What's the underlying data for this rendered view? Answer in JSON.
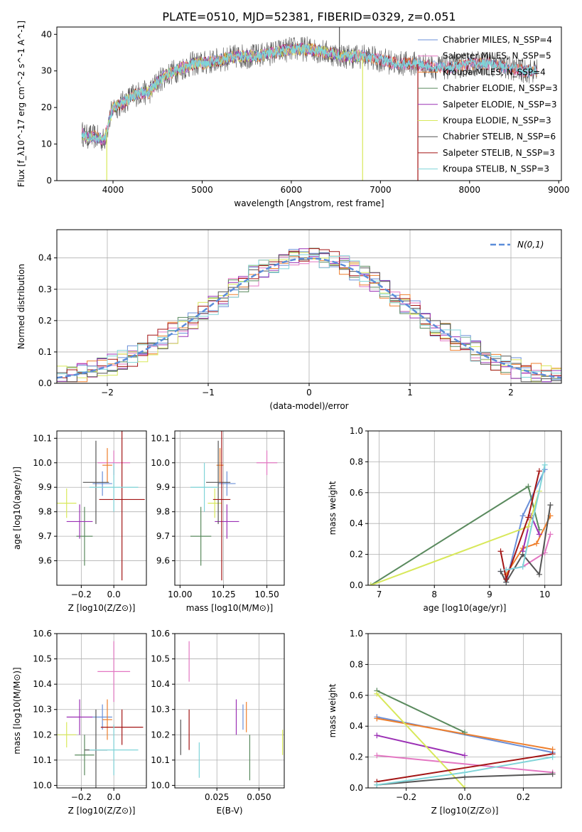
{
  "figure": {
    "title": "PLATE=0510, MJD=52381, FIBERID=0329, z=0.051"
  },
  "model_names": [
    "Chabrier MILES",
    "Salpeter MILES",
    "Kroupa MILES",
    "Chabrier ELODIE",
    "Salpeter ELODIE",
    "Kroupa ELODIE",
    "Chabrier STELIB",
    "Salpeter STELIB",
    "Kroupa STELIB"
  ],
  "model_colors": [
    "#6a8fd8",
    "#e377c2",
    "#ee7f2d",
    "#5a8a5e",
    "#9b30b5",
    "#d8e85a",
    "#555555",
    "#a31515",
    "#7fd4d8"
  ],
  "chart_data": [
    {
      "type": "line",
      "name": "spectrum",
      "title": "PLATE=0510, MJD=52381, FIBERID=0329, z=0.051",
      "xlabel": "wavelength [Angstrom, rest frame]",
      "ylabel": "Flux [f_λ10^-17 erg cm^-2 s^-1 A^-1]",
      "xlim": [
        3370,
        9030
      ],
      "ylim": [
        0,
        42
      ],
      "xticks": [
        4000,
        5000,
        6000,
        7000,
        8000,
        9000
      ],
      "yticks": [
        0,
        10,
        20,
        30,
        40
      ],
      "grid": false,
      "legend_position": "top-right",
      "legend": [
        "Chabrier MILES, N_SSP=4",
        "Salpeter MILES, N_SSP=5",
        "Kroupa MILES, N_SSP=4",
        "Chabrier ELODIE, N_SSP=3",
        "Salpeter ELODIE, N_SSP=3",
        "Kroupa ELODIE, N_SSP=3",
        "Chabrier STELIB, N_SSP=6",
        "Salpeter STELIB, N_SSP=3",
        "Kroupa STELIB, N_SSP=3"
      ],
      "continuum": {
        "x": [
          3650,
          3700,
          3800,
          3900,
          4000,
          4100,
          4200,
          4300,
          4400,
          4500,
          4600,
          4700,
          4800,
          4900,
          5000,
          5200,
          5400,
          5600,
          5800,
          6000,
          6200,
          6400,
          6600,
          6800,
          7000,
          7200,
          7400,
          7600,
          7800,
          8000,
          8200,
          8400,
          8600,
          8760
        ],
        "y": [
          13,
          12,
          12,
          11,
          20,
          21,
          23,
          24,
          24,
          27,
          29,
          30,
          31,
          32,
          32,
          33,
          34,
          34,
          35,
          36,
          36,
          35,
          34,
          34,
          33,
          32,
          32,
          31,
          31,
          32,
          32,
          31,
          30,
          30
        ]
      },
      "features": [
        {
          "x": 3930,
          "y": 0,
          "series": "Kroupa ELODIE"
        },
        {
          "x": 6800,
          "y": 0,
          "series": "Kroupa ELODIE"
        },
        {
          "x": 7420,
          "y": 0,
          "series": "Salpeter STELIB"
        },
        {
          "x": 6540,
          "y": 42,
          "series": "Chabrier STELIB"
        }
      ],
      "spectrum_ranges": {
        "MILES": [
          3650,
          8760
        ],
        "ELODIE": [
          3650,
          6800
        ],
        "STELIB": [
          3650,
          8760
        ]
      }
    },
    {
      "type": "line",
      "name": "residual-distribution",
      "xlabel": "(data-model)/error",
      "ylabel": "Normed distribution",
      "xlim": [
        -2.5,
        2.5
      ],
      "ylim": [
        0,
        0.49
      ],
      "xticks": [
        -2,
        -1,
        0,
        1,
        2
      ],
      "yticks": [
        0.0,
        0.1,
        0.2,
        0.3,
        0.4
      ],
      "grid": true,
      "legend_position": "top-right",
      "legend": [
        "N(0,1)"
      ],
      "gaussian": {
        "mean": 0,
        "sigma": 1
      },
      "bin_width": 0.1
    },
    {
      "type": "scatter",
      "name": "age-vs-Z",
      "xlabel": "Z [log10(Z/Z⊙)]",
      "ylabel": "age  [log10(age/yr)]",
      "xlim": [
        -0.35,
        0.2
      ],
      "ylim": [
        9.5,
        10.13
      ],
      "xticks": [
        -0.2,
        0.0
      ],
      "yticks": [
        9.6,
        9.7,
        9.8,
        9.9,
        10.0,
        10.1
      ],
      "grid": true,
      "points": [
        {
          "series": "Chabrier MILES",
          "x": -0.07,
          "xerr": 0.06,
          "y": 9.915,
          "yerr": 0.05
        },
        {
          "series": "Salpeter MILES",
          "x": 0.0,
          "xerr": 0.1,
          "y": 10.0,
          "yerr": 0.05
        },
        {
          "series": "Kroupa MILES",
          "x": -0.04,
          "xerr": 0.03,
          "y": 9.99,
          "yerr": 0.07
        },
        {
          "series": "Chabrier ELODIE",
          "x": -0.18,
          "xerr": 0.05,
          "y": 9.7,
          "yerr": 0.12
        },
        {
          "series": "Salpeter ELODIE",
          "x": -0.21,
          "xerr": 0.08,
          "y": 9.76,
          "yerr": 0.07
        },
        {
          "series": "Kroupa ELODIE",
          "x": -0.29,
          "xerr": 0.06,
          "y": 9.835,
          "yerr": 0.06
        },
        {
          "series": "Chabrier STELIB",
          "x": -0.11,
          "xerr": 0.08,
          "y": 9.92,
          "yerr": 0.17
        },
        {
          "series": "Salpeter STELIB",
          "x": 0.05,
          "xerr": 0.14,
          "y": 9.85,
          "yerr": 0.33
        },
        {
          "series": "Kroupa STELIB",
          "x": 0.0,
          "xerr": 0.15,
          "y": 9.9,
          "yerr": 0.1
        }
      ]
    },
    {
      "type": "scatter",
      "name": "age-vs-mass",
      "xlabel": "mass [log10(M/M⊙)]",
      "ylabel": "",
      "xlim": [
        9.97,
        10.6
      ],
      "ylim": [
        9.5,
        10.13
      ],
      "xticks": [
        10.0,
        10.25,
        10.5
      ],
      "yticks": [
        9.6,
        9.7,
        9.8,
        9.9,
        10.0,
        10.1
      ],
      "grid": true,
      "points": [
        {
          "series": "Chabrier MILES",
          "x": 10.27,
          "xerr": 0.05,
          "y": 9.915,
          "yerr": 0.05
        },
        {
          "series": "Salpeter MILES",
          "x": 10.5,
          "xerr": 0.06,
          "y": 10.0,
          "yerr": 0.05
        },
        {
          "series": "Kroupa MILES",
          "x": 10.23,
          "xerr": 0.02,
          "y": 9.99,
          "yerr": 0.07
        },
        {
          "series": "Chabrier ELODIE",
          "x": 10.12,
          "xerr": 0.06,
          "y": 9.7,
          "yerr": 0.12
        },
        {
          "series": "Salpeter ELODIE",
          "x": 10.27,
          "xerr": 0.07,
          "y": 9.76,
          "yerr": 0.07
        },
        {
          "series": "Kroupa ELODIE",
          "x": 10.2,
          "xerr": 0.04,
          "y": 9.835,
          "yerr": 0.06
        },
        {
          "series": "Chabrier STELIB",
          "x": 10.22,
          "xerr": 0.07,
          "y": 9.92,
          "yerr": 0.17
        },
        {
          "series": "Salpeter STELIB",
          "x": 10.24,
          "xerr": 0.05,
          "y": 9.85,
          "yerr": 0.33
        },
        {
          "series": "Kroupa STELIB",
          "x": 10.14,
          "xerr": 0.08,
          "y": 9.9,
          "yerr": 0.1
        }
      ]
    },
    {
      "type": "line",
      "name": "mass-weight-vs-age",
      "xlabel": "age  [log10(age/yr)]",
      "ylabel": "mass weight",
      "xlim": [
        6.8,
        10.3
      ],
      "ylim": [
        0,
        1
      ],
      "xticks": [
        7,
        8,
        9,
        10
      ],
      "yticks": [
        0.0,
        0.2,
        0.4,
        0.6,
        0.8,
        1.0
      ],
      "grid": true,
      "series": [
        {
          "name": "Chabrier MILES",
          "x": [
            9.2,
            9.3,
            9.6,
            10.0
          ],
          "y": [
            0.09,
            0.02,
            0.45,
            0.75
          ]
        },
        {
          "name": "Salpeter MILES",
          "x": [
            9.3,
            9.6,
            10.0,
            10.1
          ],
          "y": [
            0.1,
            0.12,
            0.21,
            0.33
          ]
        },
        {
          "name": "Kroupa MILES",
          "x": [
            9.3,
            9.6,
            9.85,
            10.1
          ],
          "y": [
            0.07,
            0.24,
            0.27,
            0.45
          ]
        },
        {
          "name": "Chabrier ELODIE",
          "x": [
            6.85,
            9.7,
            9.9
          ],
          "y": [
            0.0,
            0.64,
            0.36
          ]
        },
        {
          "name": "Salpeter ELODIE",
          "x": [
            9.6,
            9.75,
            9.9
          ],
          "y": [
            0.22,
            0.45,
            0.33
          ]
        },
        {
          "name": "Kroupa ELODIE",
          "x": [
            6.85,
            9.7,
            9.9
          ],
          "y": [
            0.0,
            0.38,
            0.61
          ]
        },
        {
          "name": "Chabrier STELIB",
          "x": [
            9.2,
            9.3,
            9.6,
            9.9,
            10.1
          ],
          "y": [
            0.09,
            0.02,
            0.2,
            0.07,
            0.52
          ]
        },
        {
          "name": "Salpeter STELIB",
          "x": [
            9.2,
            9.3,
            9.7,
            9.9
          ],
          "y": [
            0.22,
            0.04,
            0.44,
            0.74
          ]
        },
        {
          "name": "Kroupa STELIB",
          "x": [
            9.3,
            9.6,
            10.0
          ],
          "y": [
            0.1,
            0.12,
            0.78
          ]
        }
      ]
    },
    {
      "type": "scatter",
      "name": "mass-vs-Z",
      "xlabel": "Z [log10(Z/Z⊙)]",
      "ylabel": "mass [log10(M/M⊙)]",
      "xlim": [
        -0.35,
        0.2
      ],
      "ylim": [
        9.99,
        10.6
      ],
      "xticks": [
        -0.2,
        0.0
      ],
      "yticks": [
        10.0,
        10.1,
        10.2,
        10.3,
        10.4,
        10.5,
        10.6
      ],
      "grid": true,
      "points": [
        {
          "series": "Chabrier MILES",
          "x": -0.07,
          "xerr": 0.06,
          "y": 10.27,
          "yerr": 0.05
        },
        {
          "series": "Salpeter MILES",
          "x": 0.0,
          "xerr": 0.1,
          "y": 10.45,
          "yerr": 0.12
        },
        {
          "series": "Kroupa MILES",
          "x": -0.04,
          "xerr": 0.03,
          "y": 10.26,
          "yerr": 0.08
        },
        {
          "series": "Chabrier ELODIE",
          "x": -0.18,
          "xerr": 0.06,
          "y": 10.12,
          "yerr": 0.08
        },
        {
          "series": "Salpeter ELODIE",
          "x": -0.21,
          "xerr": 0.08,
          "y": 10.27,
          "yerr": 0.07
        },
        {
          "series": "Kroupa ELODIE",
          "x": -0.29,
          "xerr": 0.06,
          "y": 10.2,
          "yerr": 0.05
        },
        {
          "series": "Chabrier STELIB",
          "x": -0.11,
          "xerr": 0.07,
          "y": 10.14,
          "yerr": 0.16
        },
        {
          "series": "Salpeter STELIB",
          "x": 0.05,
          "xerr": 0.13,
          "y": 10.23,
          "yerr": 0.07
        },
        {
          "series": "Kroupa STELIB",
          "x": 0.0,
          "xerr": 0.15,
          "y": 10.14,
          "yerr": 0.1
        }
      ]
    },
    {
      "type": "scatter",
      "name": "mass-vs-ebv",
      "xlabel": "E(B-V)",
      "ylabel": "",
      "xlim": [
        0.0,
        0.065
      ],
      "ylim": [
        9.99,
        10.6
      ],
      "xticks": [
        0.025,
        0.05
      ],
      "yticks": [
        10.0,
        10.1,
        10.2,
        10.3,
        10.4,
        10.5,
        10.6
      ],
      "grid": true,
      "points": [
        {
          "series": "Chabrier MILES",
          "x": 0.0405,
          "y": 10.27,
          "yerr": 0.05
        },
        {
          "series": "Salpeter MILES",
          "x": 0.0085,
          "y": 10.49,
          "yerr": 0.08
        },
        {
          "series": "Kroupa MILES",
          "x": 0.0425,
          "y": 10.27,
          "yerr": 0.06
        },
        {
          "series": "Chabrier ELODIE",
          "x": 0.0445,
          "y": 10.11,
          "yerr": 0.09
        },
        {
          "series": "Salpeter ELODIE",
          "x": 0.0365,
          "y": 10.27,
          "yerr": 0.07
        },
        {
          "series": "Kroupa ELODIE",
          "x": 0.064,
          "y": 10.17,
          "yerr": 0.05
        },
        {
          "series": "Chabrier STELIB",
          "x": 0.0035,
          "y": 10.19,
          "yerr": 0.07
        },
        {
          "series": "Salpeter STELIB",
          "x": 0.0085,
          "y": 10.22,
          "yerr": 0.08
        },
        {
          "series": "Kroupa STELIB",
          "x": 0.0145,
          "y": 10.1,
          "yerr": 0.07
        }
      ]
    },
    {
      "type": "line",
      "name": "mass-weight-vs-Z",
      "xlabel": "Z [log10(Z/Z⊙)]",
      "ylabel": "mass weight",
      "xlim": [
        -0.33,
        0.33
      ],
      "ylim": [
        0,
        1
      ],
      "xticks": [
        -0.2,
        0.0,
        0.2
      ],
      "yticks": [
        0.0,
        0.2,
        0.4,
        0.6,
        0.8,
        1.0
      ],
      "grid": true,
      "series": [
        {
          "name": "Chabrier MILES",
          "x": [
            -0.3,
            0.3
          ],
          "y": [
            0.46,
            0.23
          ]
        },
        {
          "name": "Salpeter MILES",
          "x": [
            -0.3,
            0.3
          ],
          "y": [
            0.21,
            0.1
          ]
        },
        {
          "name": "Kroupa MILES",
          "x": [
            -0.3,
            0.3
          ],
          "y": [
            0.45,
            0.25
          ]
        },
        {
          "name": "Chabrier ELODIE",
          "x": [
            -0.3,
            0.0
          ],
          "y": [
            0.63,
            0.36
          ]
        },
        {
          "name": "Salpeter ELODIE",
          "x": [
            -0.3,
            0.0
          ],
          "y": [
            0.34,
            0.21
          ]
        },
        {
          "name": "Kroupa ELODIE",
          "x": [
            -0.3,
            0.0
          ],
          "y": [
            0.61,
            0.0
          ]
        },
        {
          "name": "Chabrier STELIB",
          "x": [
            -0.3,
            0.0,
            0.3
          ],
          "y": [
            0.02,
            0.07,
            0.09
          ]
        },
        {
          "name": "Salpeter STELIB",
          "x": [
            -0.3,
            0.3
          ],
          "y": [
            0.04,
            0.22
          ]
        },
        {
          "name": "Kroupa STELIB",
          "x": [
            -0.3,
            0.0,
            0.3
          ],
          "y": [
            0.02,
            0.1,
            0.2
          ]
        }
      ]
    }
  ]
}
